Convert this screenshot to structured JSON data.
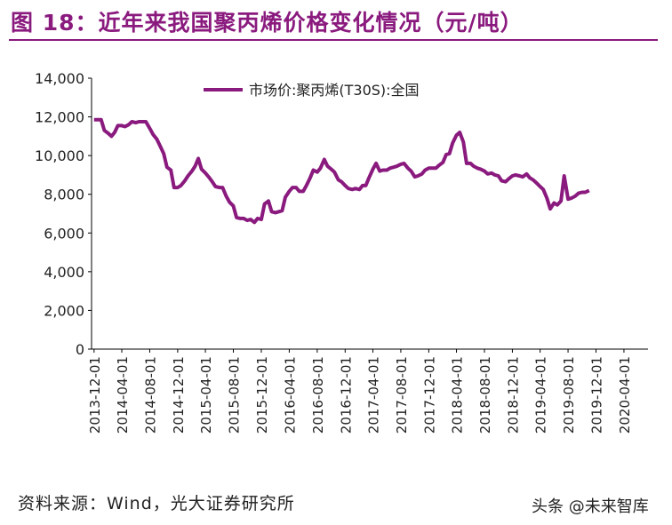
{
  "header": {
    "title": "图 18：近年来我国聚丙烯价格变化情况（元/吨）"
  },
  "footer": {
    "source": "资料来源：Wind，光大证券研究所",
    "watermark": "头条 @未来智库"
  },
  "colors": {
    "accent": "#8a1a7e",
    "line": "#8a1a7e"
  },
  "chart_data": {
    "type": "line",
    "legend": "top-center",
    "grid": false,
    "ylim": [
      0,
      14000
    ],
    "yticks": [
      "0",
      "2,000",
      "4,000",
      "6,000",
      "8,000",
      "10,000",
      "12,000",
      "14,000"
    ],
    "xticks": [
      "2013-12-01",
      "2014-04-01",
      "2014-08-01",
      "2014-12-01",
      "2015-04-01",
      "2015-08-01",
      "2015-12-01",
      "2016-04-01",
      "2016-08-01",
      "2016-12-01",
      "2017-04-01",
      "2017-08-01",
      "2017-12-01",
      "2018-04-01",
      "2018-08-01",
      "2018-12-01",
      "2019-04-01",
      "2019-08-01",
      "2019-12-01",
      "2020-04-01"
    ],
    "series": [
      {
        "name": "市场价:聚丙烯(T30S):全国",
        "points": [
          [
            "2013-12-01",
            11850
          ],
          [
            "2014-01-01",
            11850
          ],
          [
            "2014-01-15",
            11300
          ],
          [
            "2014-02-01",
            11150
          ],
          [
            "2014-02-15",
            11000
          ],
          [
            "2014-03-01",
            11200
          ],
          [
            "2014-03-15",
            11550
          ],
          [
            "2014-04-01",
            11550
          ],
          [
            "2014-04-15",
            11500
          ],
          [
            "2014-05-01",
            11600
          ],
          [
            "2014-05-15",
            11750
          ],
          [
            "2014-06-01",
            11700
          ],
          [
            "2014-06-15",
            11750
          ],
          [
            "2014-07-01",
            11750
          ],
          [
            "2014-07-15",
            11750
          ],
          [
            "2014-08-01",
            11400
          ],
          [
            "2014-08-15",
            11100
          ],
          [
            "2014-09-01",
            10850
          ],
          [
            "2014-09-15",
            10500
          ],
          [
            "2014-10-01",
            10100
          ],
          [
            "2014-10-15",
            9400
          ],
          [
            "2014-11-01",
            9250
          ],
          [
            "2014-11-15",
            8350
          ],
          [
            "2014-12-01",
            8350
          ],
          [
            "2014-12-15",
            8450
          ],
          [
            "2015-01-01",
            8700
          ],
          [
            "2015-01-15",
            8950
          ],
          [
            "2015-02-01",
            9200
          ],
          [
            "2015-02-15",
            9450
          ],
          [
            "2015-03-01",
            9850
          ],
          [
            "2015-03-15",
            9300
          ],
          [
            "2015-04-01",
            9100
          ],
          [
            "2015-04-15",
            8900
          ],
          [
            "2015-05-01",
            8650
          ],
          [
            "2015-05-15",
            8400
          ],
          [
            "2015-06-01",
            8350
          ],
          [
            "2015-06-15",
            8350
          ],
          [
            "2015-07-01",
            7900
          ],
          [
            "2015-07-15",
            7600
          ],
          [
            "2015-08-01",
            7400
          ],
          [
            "2015-08-15",
            6800
          ],
          [
            "2015-09-01",
            6750
          ],
          [
            "2015-09-15",
            6750
          ],
          [
            "2015-10-01",
            6650
          ],
          [
            "2015-10-15",
            6700
          ],
          [
            "2015-11-01",
            6550
          ],
          [
            "2015-11-15",
            6750
          ],
          [
            "2015-12-01",
            6700
          ],
          [
            "2015-12-15",
            7500
          ],
          [
            "2016-01-01",
            7650
          ],
          [
            "2016-01-15",
            7100
          ],
          [
            "2016-02-01",
            7050
          ],
          [
            "2016-02-15",
            7100
          ],
          [
            "2016-03-01",
            7150
          ],
          [
            "2016-03-15",
            7850
          ],
          [
            "2016-04-01",
            8150
          ],
          [
            "2016-04-15",
            8350
          ],
          [
            "2016-05-01",
            8350
          ],
          [
            "2016-05-15",
            8150
          ],
          [
            "2016-06-01",
            8150
          ],
          [
            "2016-06-15",
            8450
          ],
          [
            "2016-07-01",
            8850
          ],
          [
            "2016-07-15",
            9250
          ],
          [
            "2016-08-01",
            9150
          ],
          [
            "2016-08-15",
            9350
          ],
          [
            "2016-09-01",
            9800
          ],
          [
            "2016-09-15",
            9450
          ],
          [
            "2016-10-01",
            9300
          ],
          [
            "2016-10-15",
            9150
          ],
          [
            "2016-11-01",
            8750
          ],
          [
            "2016-11-15",
            8650
          ],
          [
            "2016-12-01",
            8450
          ],
          [
            "2016-12-15",
            8300
          ],
          [
            "2017-01-01",
            8250
          ],
          [
            "2017-01-15",
            8300
          ],
          [
            "2017-02-01",
            8250
          ],
          [
            "2017-02-15",
            8450
          ],
          [
            "2017-03-01",
            8450
          ],
          [
            "2017-03-15",
            8850
          ],
          [
            "2017-04-01",
            9300
          ],
          [
            "2017-04-15",
            9600
          ],
          [
            "2017-05-01",
            9200
          ],
          [
            "2017-05-15",
            9250
          ],
          [
            "2017-06-01",
            9250
          ],
          [
            "2017-06-15",
            9350
          ],
          [
            "2017-07-01",
            9400
          ],
          [
            "2017-07-15",
            9450
          ],
          [
            "2017-08-01",
            9550
          ],
          [
            "2017-08-15",
            9600
          ],
          [
            "2017-09-01",
            9350
          ],
          [
            "2017-09-15",
            9200
          ],
          [
            "2017-10-01",
            8900
          ],
          [
            "2017-10-15",
            8950
          ],
          [
            "2017-11-01",
            9050
          ],
          [
            "2017-11-15",
            9250
          ],
          [
            "2017-12-01",
            9350
          ],
          [
            "2017-12-15",
            9350
          ],
          [
            "2018-01-01",
            9350
          ],
          [
            "2018-01-15",
            9500
          ],
          [
            "2018-02-01",
            9650
          ],
          [
            "2018-02-15",
            10050
          ],
          [
            "2018-03-01",
            10100
          ],
          [
            "2018-03-15",
            10650
          ],
          [
            "2018-04-01",
            11050
          ],
          [
            "2018-04-15",
            11200
          ],
          [
            "2018-05-01",
            10700
          ],
          [
            "2018-05-15",
            9600
          ],
          [
            "2018-06-01",
            9600
          ],
          [
            "2018-06-15",
            9450
          ],
          [
            "2018-07-01",
            9350
          ],
          [
            "2018-07-15",
            9300
          ],
          [
            "2018-08-01",
            9200
          ],
          [
            "2018-08-15",
            9050
          ],
          [
            "2018-09-01",
            9100
          ],
          [
            "2018-09-15",
            9000
          ],
          [
            "2018-10-01",
            8950
          ],
          [
            "2018-10-15",
            8700
          ],
          [
            "2018-11-01",
            8650
          ],
          [
            "2018-11-15",
            8800
          ],
          [
            "2018-12-01",
            8950
          ],
          [
            "2018-12-15",
            9000
          ],
          [
            "2019-01-01",
            8950
          ],
          [
            "2019-01-15",
            8900
          ],
          [
            "2019-02-01",
            9050
          ],
          [
            "2019-02-15",
            8850
          ],
          [
            "2019-03-01",
            8750
          ],
          [
            "2019-03-15",
            8600
          ],
          [
            "2019-04-01",
            8400
          ],
          [
            "2019-04-15",
            8250
          ],
          [
            "2019-05-01",
            7800
          ],
          [
            "2019-05-15",
            7250
          ],
          [
            "2019-06-01",
            7550
          ],
          [
            "2019-06-15",
            7450
          ],
          [
            "2019-07-01",
            7650
          ],
          [
            "2019-07-15",
            8950
          ],
          [
            "2019-08-01",
            7750
          ],
          [
            "2019-08-15",
            7800
          ],
          [
            "2019-09-01",
            7900
          ],
          [
            "2019-09-15",
            8050
          ],
          [
            "2019-10-01",
            8100
          ],
          [
            "2019-10-15",
            8100
          ],
          [
            "2019-11-01",
            8200
          ]
        ]
      }
    ]
  }
}
